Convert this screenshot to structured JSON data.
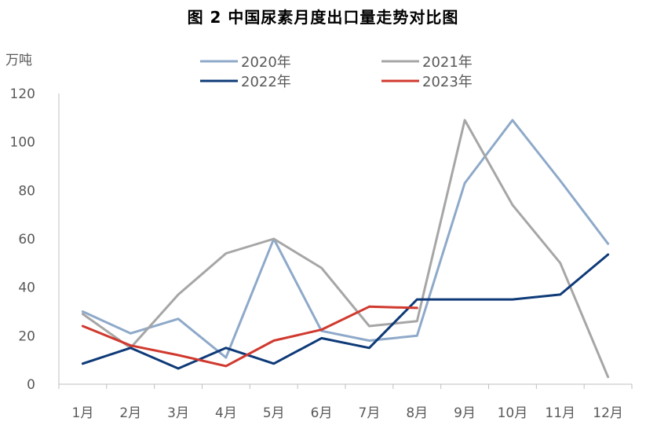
{
  "title": "图 2  中国尿素月度出口量走势对比图",
  "chart_data": {
    "type": "line",
    "title": "图 2  中国尿素月度出口量走势对比图",
    "ylabel": "万吨",
    "xlabel": "",
    "categories": [
      "1月",
      "2月",
      "3月",
      "4月",
      "5月",
      "6月",
      "7月",
      "8月",
      "9月",
      "10月",
      "11月",
      "12月"
    ],
    "ylim": [
      0,
      120
    ],
    "yticks": [
      0,
      20,
      40,
      60,
      80,
      100,
      120
    ],
    "grid": false,
    "legend_position": "top",
    "series": [
      {
        "name": "2020年",
        "color": "#8EA9C9",
        "values": [
          30,
          21,
          27,
          11,
          60,
          22,
          18,
          20,
          83,
          109,
          84,
          58
        ]
      },
      {
        "name": "2021年",
        "color": "#A6A6A6",
        "values": [
          29,
          15,
          37,
          54,
          60,
          48,
          24,
          26,
          109,
          74,
          50,
          3
        ]
      },
      {
        "name": "2022年",
        "color": "#0E3A78",
        "values": [
          8.5,
          15,
          6.5,
          15,
          8.5,
          19,
          15,
          35,
          35,
          35,
          37,
          53.5
        ]
      },
      {
        "name": "2023年",
        "color": "#D0392E",
        "values": [
          24,
          16,
          12,
          7.5,
          18,
          22.5,
          32,
          31.5,
          null,
          null,
          null,
          null
        ]
      }
    ]
  }
}
